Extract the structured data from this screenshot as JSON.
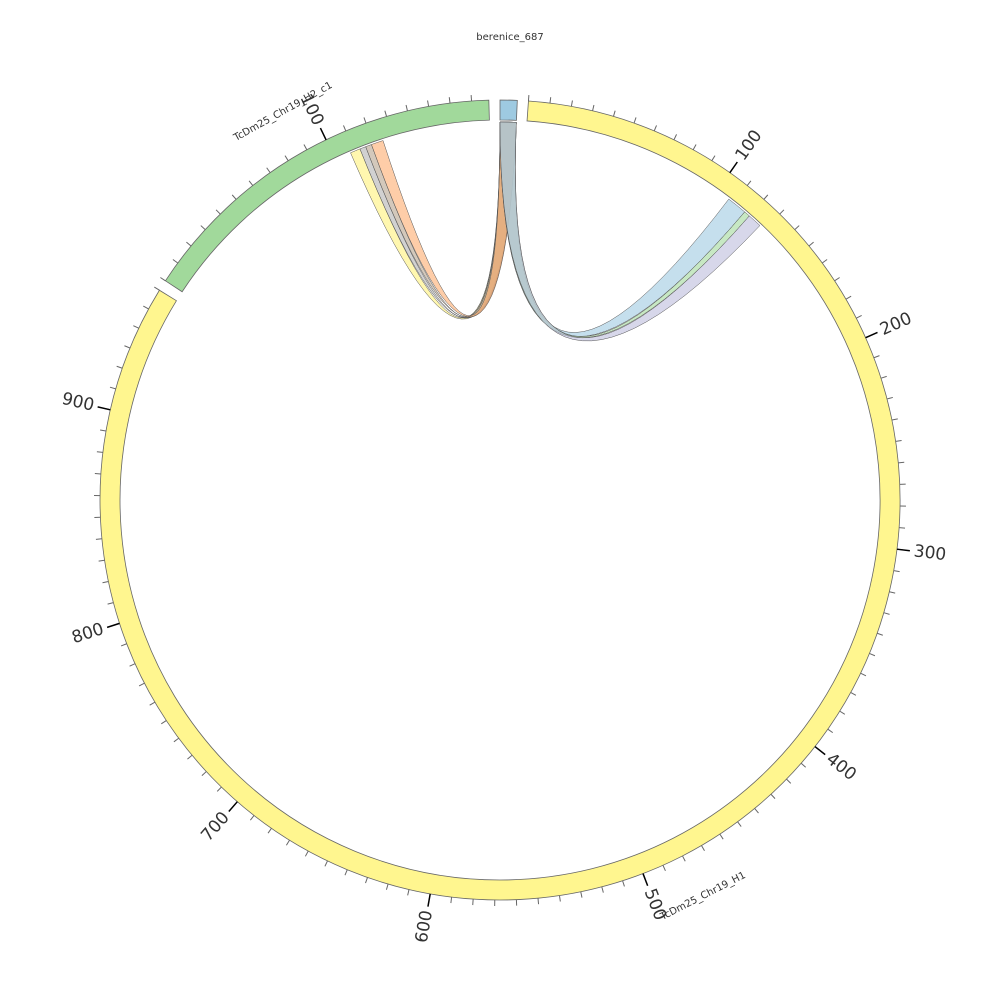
{
  "chart_data": {
    "type": "circos",
    "title": "berenice_687",
    "segments": [
      {
        "name": "berenice_687",
        "length": 8,
        "color": "#9ecae1",
        "ticks": [],
        "minor_tick_step": null
      },
      {
        "name": "TcDm25_Chr19_H1",
        "length": 960,
        "color": "#fff68f",
        "ticks": [
          100,
          200,
          300,
          400,
          500,
          600,
          700,
          800,
          900
        ],
        "minor_tick_step": 10
      },
      {
        "name": "TcDm25_Chr19_H2_c1",
        "length": 178,
        "color": "#a1d99b",
        "ticks": [
          100
        ],
        "minor_tick_step": 10
      }
    ],
    "links": [
      {
        "source": {
          "segment": 0,
          "start": 0,
          "end": 8
        },
        "target": {
          "segment": 2,
          "start": 108,
          "end": 113
        },
        "color": "#fff17a"
      },
      {
        "source": {
          "segment": 0,
          "start": 0,
          "end": 8
        },
        "target": {
          "segment": 2,
          "start": 113,
          "end": 116
        },
        "color": "#b3b3b3"
      },
      {
        "source": {
          "segment": 0,
          "start": 0,
          "end": 8
        },
        "target": {
          "segment": 2,
          "start": 116,
          "end": 119
        },
        "color": "#b5a48d"
      },
      {
        "source": {
          "segment": 0,
          "start": 0,
          "end": 8
        },
        "target": {
          "segment": 2,
          "start": 119,
          "end": 125
        },
        "color": "#fdac6e"
      },
      {
        "source": {
          "segment": 0,
          "start": 0,
          "end": 8
        },
        "target": {
          "segment": 1,
          "start": 107,
          "end": 117
        },
        "color": "#9ecae1"
      },
      {
        "source": {
          "segment": 0,
          "start": 0,
          "end": 8
        },
        "target": {
          "segment": 1,
          "start": 117,
          "end": 120
        },
        "color": "#a1d99b"
      },
      {
        "source": {
          "segment": 0,
          "start": 0,
          "end": 8
        },
        "target": {
          "segment": 1,
          "start": 120,
          "end": 127
        },
        "color": "#bcbddc"
      }
    ]
  }
}
